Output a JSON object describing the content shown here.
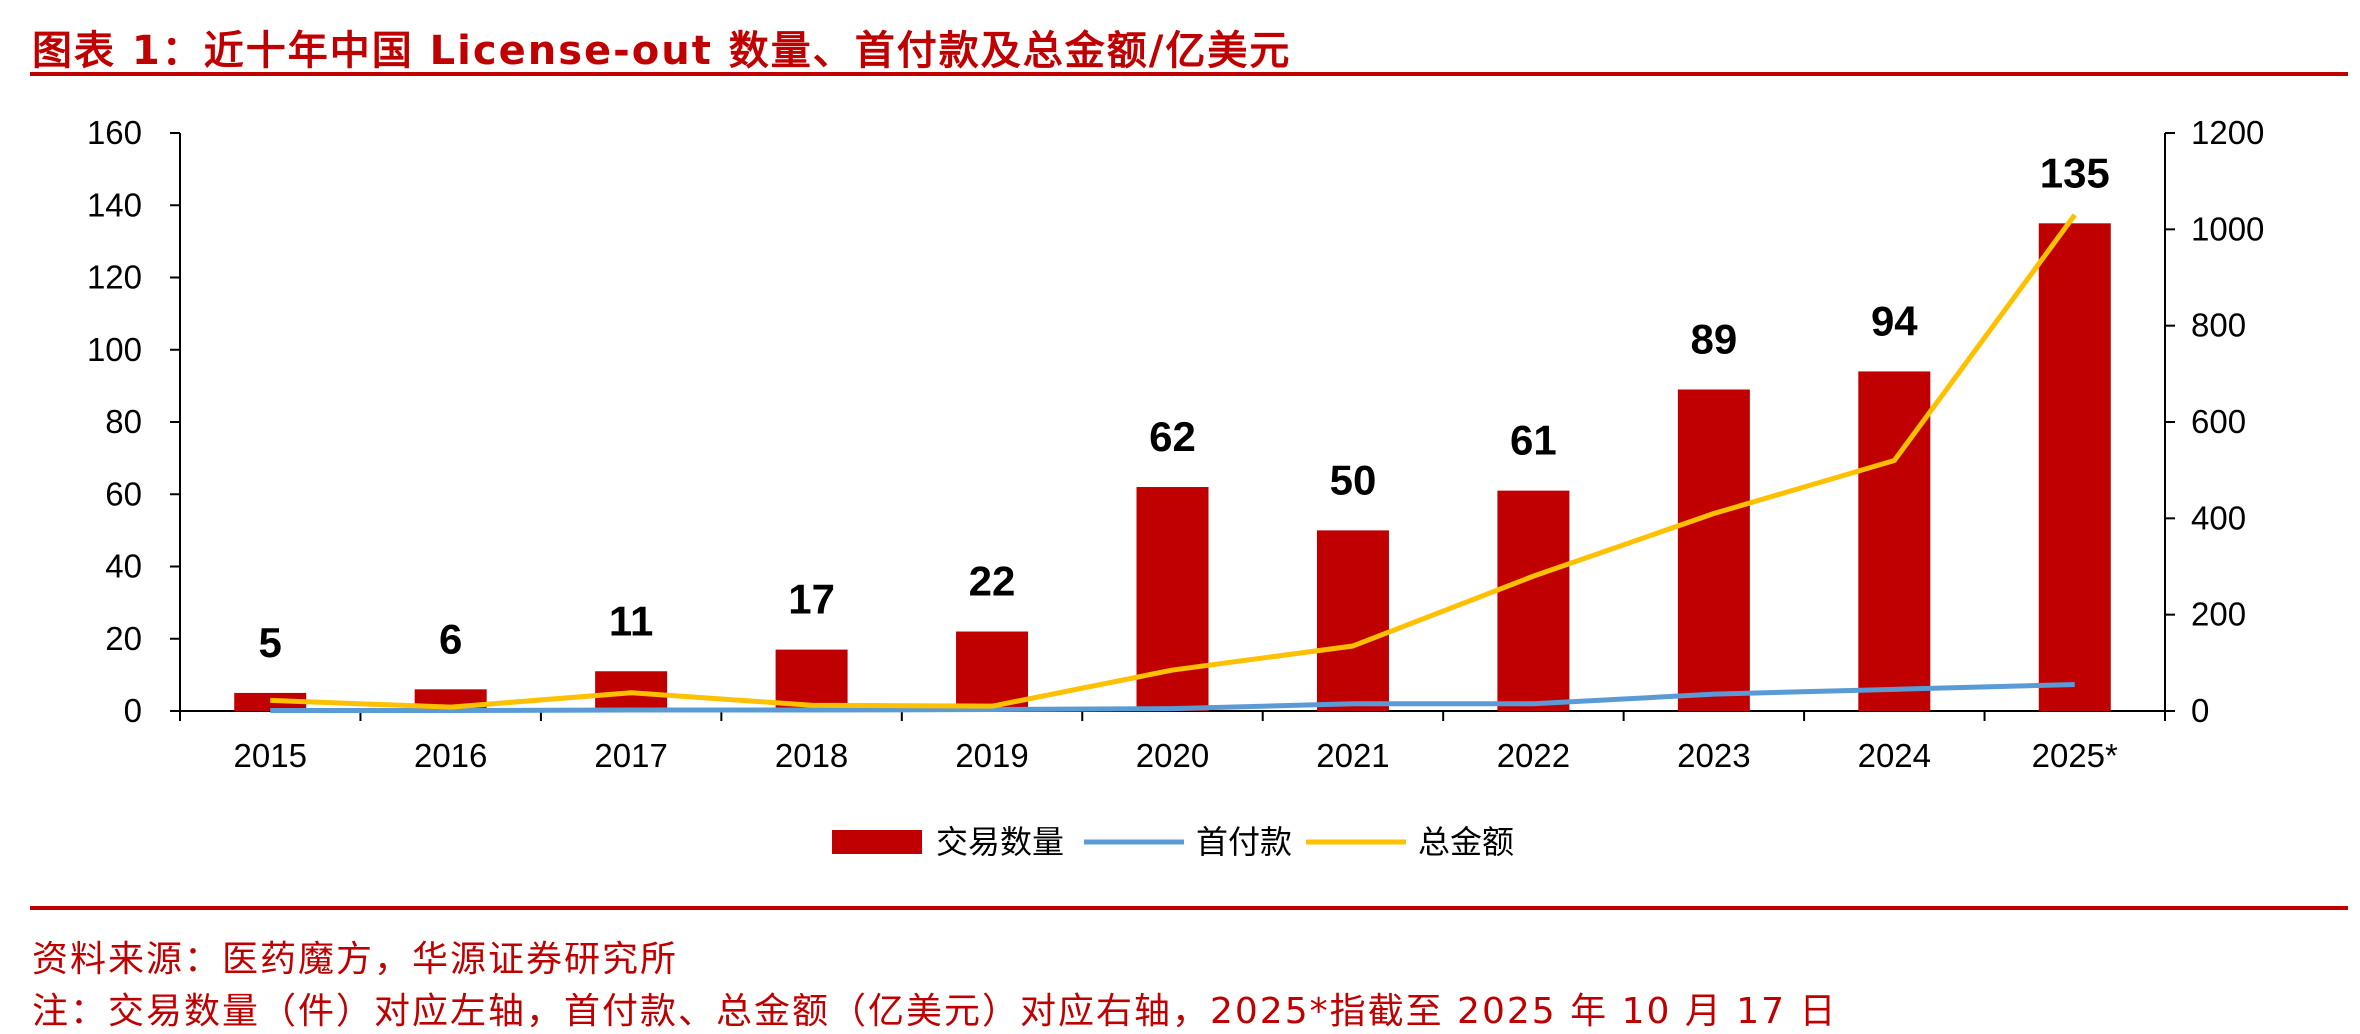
{
  "header": {
    "title": "图表 1：近十年中国 License-out 数量、首付款及总金额/亿美元"
  },
  "footer": {
    "source": "资料来源：医药魔方，华源证券研究所",
    "note": "注：交易数量（件）对应左轴，首付款、总金额（亿美元）对应右轴，2025*指截至 2025 年 10 月 17 日"
  },
  "colors": {
    "accent": "#c00000",
    "bar": "#c00000",
    "upfront_line": "#5b9bd5",
    "total_line": "#ffc000"
  },
  "chart_data": {
    "type": "bar",
    "title": "近十年中国 License-out 数量、首付款及总金额/亿美元",
    "categories": [
      "2015",
      "2016",
      "2017",
      "2018",
      "2019",
      "2020",
      "2021",
      "2022",
      "2023",
      "2024",
      "2025*"
    ],
    "left_axis": {
      "min": 0,
      "max": 160,
      "ticks": [
        0,
        20,
        40,
        60,
        80,
        100,
        120,
        140,
        160
      ]
    },
    "right_axis": {
      "min": 0,
      "max": 1200,
      "ticks": [
        0,
        200,
        400,
        600,
        800,
        1000,
        1200
      ]
    },
    "series": [
      {
        "name": "交易数量",
        "type": "bar",
        "axis": "left",
        "values": [
          5,
          6,
          11,
          17,
          22,
          62,
          50,
          61,
          89,
          94,
          135
        ],
        "data_labels": [
          "5",
          "6",
          "11",
          "17",
          "22",
          "62",
          "50",
          "61",
          "89",
          "94",
          "135"
        ]
      },
      {
        "name": "首付款",
        "type": "line",
        "axis": "right",
        "values": [
          1,
          1,
          2,
          2,
          3,
          5,
          15,
          15,
          35,
          45,
          55
        ]
      },
      {
        "name": "总金额",
        "type": "line",
        "axis": "right",
        "values": [
          22,
          8,
          38,
          12,
          10,
          85,
          135,
          280,
          410,
          520,
          1030
        ]
      }
    ],
    "legend": "bottom-center",
    "grid": false
  }
}
